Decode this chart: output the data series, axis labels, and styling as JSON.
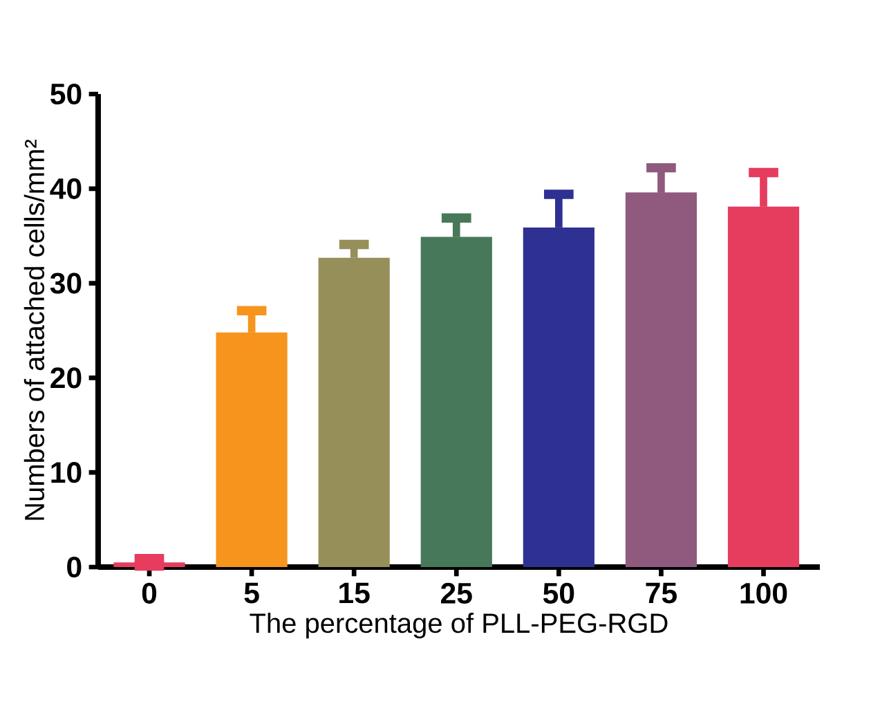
{
  "chart_data": {
    "type": "bar",
    "xlabel": "The percentage of PLL-PEG-RGD",
    "ylabel": "Numbers of attached cells/mm²",
    "categories": [
      "0",
      "5",
      "15",
      "25",
      "50",
      "75",
      "100"
    ],
    "values": [
      0.5,
      24.8,
      32.7,
      34.9,
      35.9,
      39.6,
      38.1
    ],
    "errors": [
      0.4,
      2.3,
      1.4,
      2.0,
      3.5,
      2.6,
      3.6
    ],
    "colors": [
      "#e63c5e",
      "#f7941e",
      "#968f59",
      "#48785a",
      "#2e3192",
      "#8f5a7e",
      "#e63c5e"
    ],
    "ylim": [
      0,
      50
    ],
    "yticks": [
      0,
      10,
      20,
      30,
      40,
      50
    ]
  }
}
